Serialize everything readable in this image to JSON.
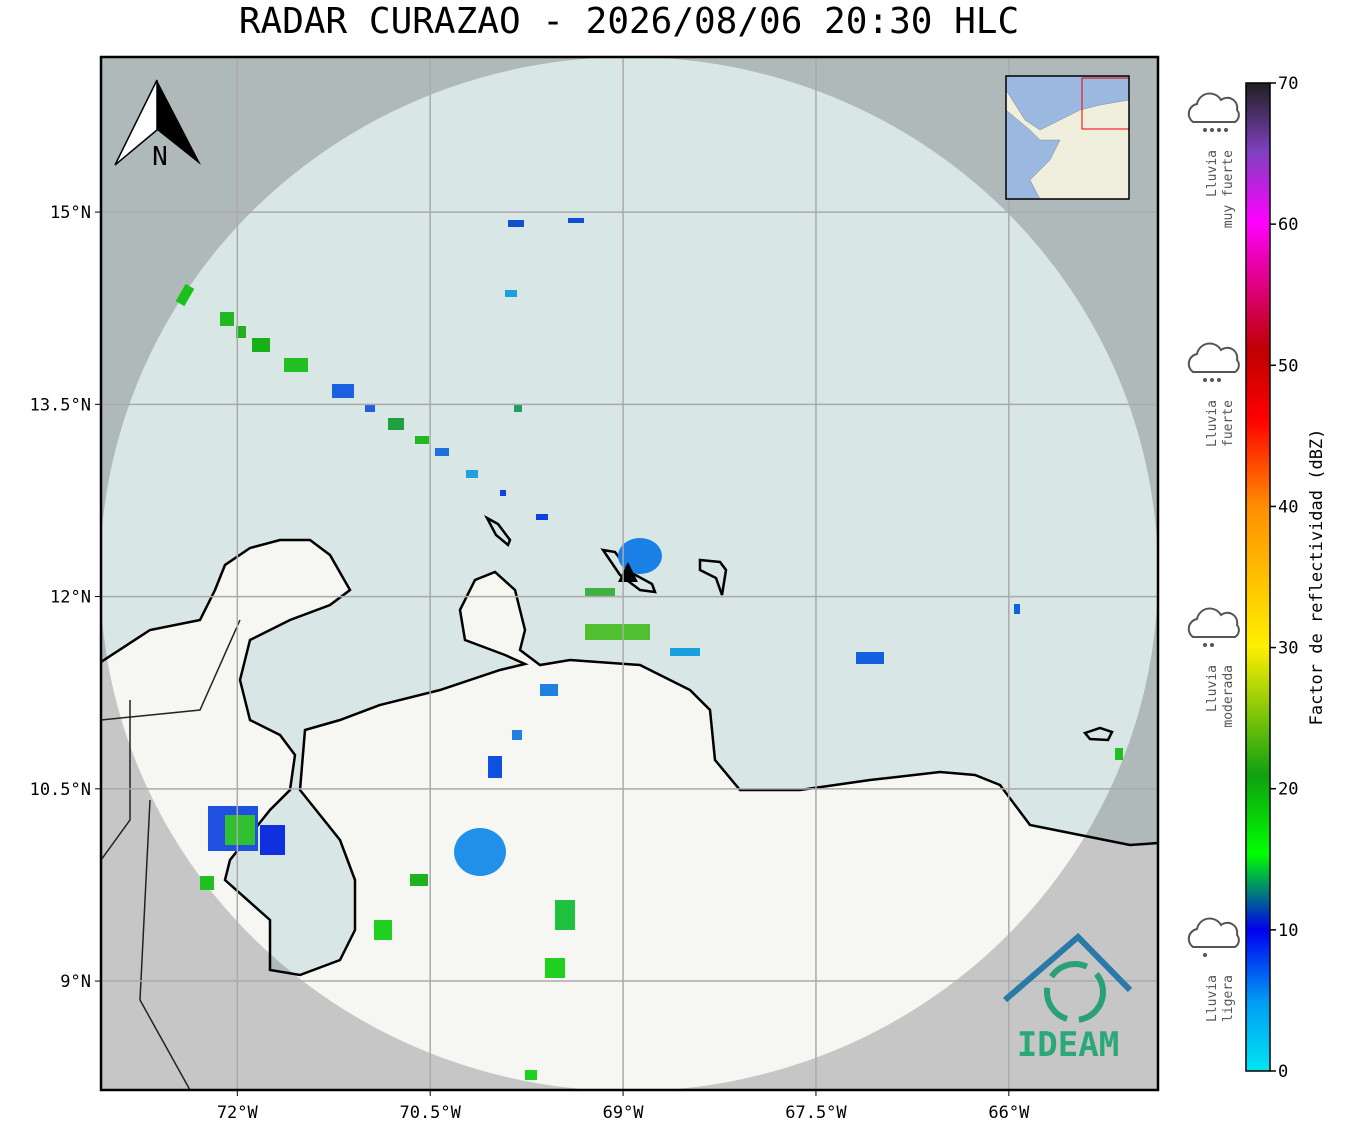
{
  "map": {
    "title": "RADAR CURAZAO - 2026/08/06 20:30 HLC",
    "north_label": "N",
    "logo_text": "IDEAM",
    "xlim": [
      -73.06,
      -64.84
    ],
    "ylim": [
      8.15,
      16.21
    ],
    "xticks": [
      {
        "value": -72,
        "label": "72°W"
      },
      {
        "value": -70.5,
        "label": "70.5°W"
      },
      {
        "value": -69,
        "label": "69°W"
      },
      {
        "value": -67.5,
        "label": "67.5°W"
      },
      {
        "value": -66,
        "label": "66°W"
      }
    ],
    "yticks": [
      {
        "value": 15,
        "label": "15°N"
      },
      {
        "value": 13.5,
        "label": "13.5°N"
      },
      {
        "value": 12,
        "label": "12°N"
      },
      {
        "value": 10.5,
        "label": "10.5°N"
      },
      {
        "value": 9,
        "label": "9°N"
      }
    ],
    "colorbar": {
      "label": "Factor de reflectividad (dBZ)",
      "lim": [
        0,
        70
      ],
      "ticks": [
        0,
        10,
        20,
        30,
        40,
        50,
        60,
        70
      ]
    },
    "intensity_legend": [
      [
        "Lluvia",
        "muy fuerte"
      ],
      [
        "Lluvia",
        "fuerte"
      ],
      [
        "Lluvia",
        "moderada"
      ],
      [
        "Lluvia",
        "ligera"
      ]
    ]
  }
}
